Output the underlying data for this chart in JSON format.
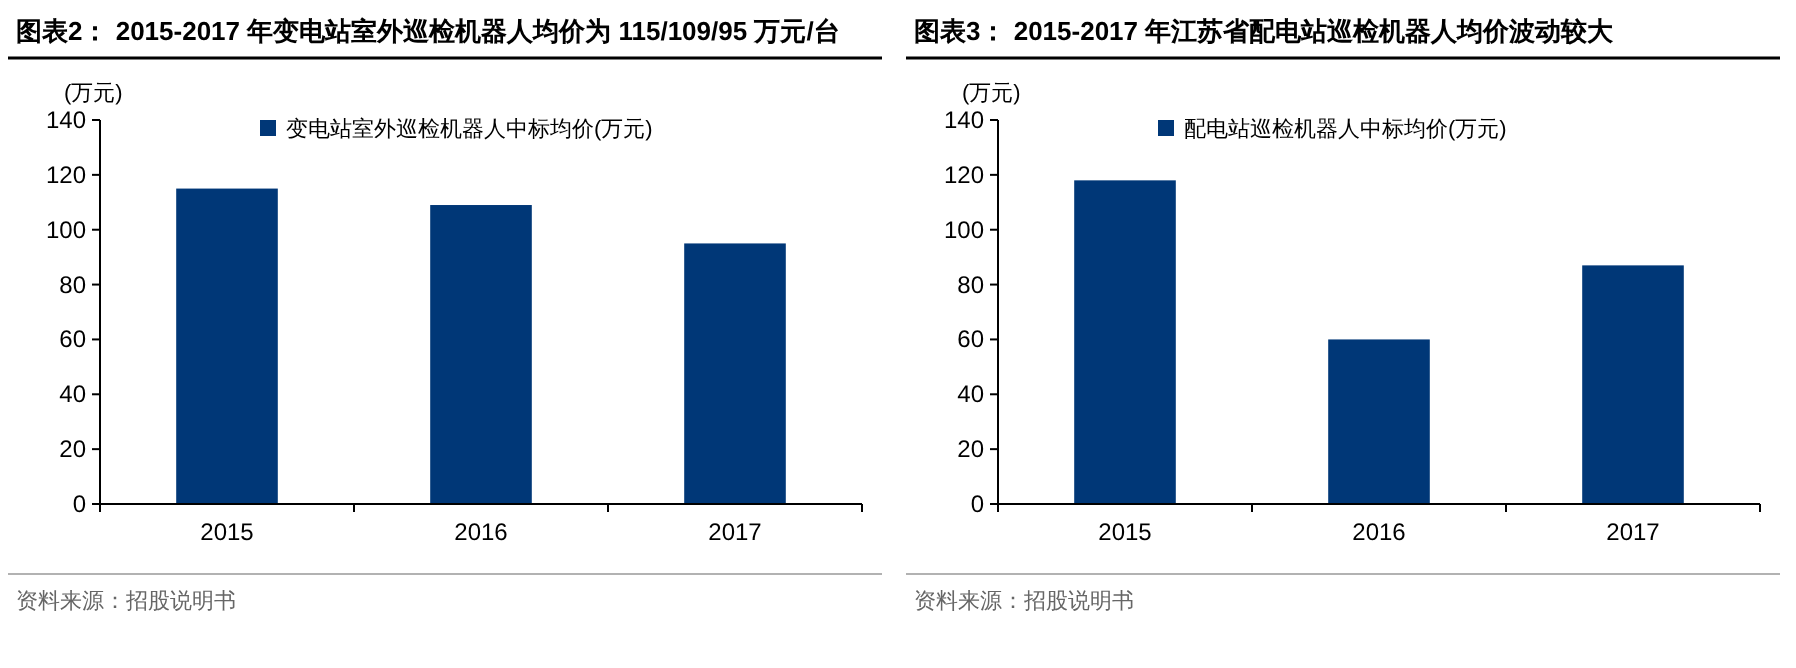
{
  "chart_data": [
    {
      "type": "bar",
      "title": "图表2： 2015-2017 年变电站室外巡检机器人均价为 115/109/95 万元/台",
      "ylabel": "(万元)",
      "categories": [
        "2015",
        "2016",
        "2017"
      ],
      "series": [
        {
          "name": "变电站室外巡检机器人中标均价(万元)",
          "color": "#003777",
          "values": [
            115,
            109,
            95
          ]
        }
      ],
      "ylim": [
        0,
        140
      ],
      "yticks": [
        0,
        20,
        40,
        60,
        80,
        100,
        120,
        140
      ],
      "legend": "top",
      "annotations": [
        "资料来源：招股说明书"
      ]
    },
    {
      "type": "bar",
      "title": "图表3： 2015-2017 年江苏省配电站巡检机器人均价波动较大",
      "ylabel": "(万元)",
      "categories": [
        "2015",
        "2016",
        "2017"
      ],
      "series": [
        {
          "name": "配电站巡检机器人中标均价(万元)",
          "color": "#003777",
          "values": [
            118,
            60,
            87
          ]
        }
      ],
      "ylim": [
        0,
        140
      ],
      "yticks": [
        0,
        20,
        40,
        60,
        80,
        100,
        120,
        140
      ],
      "legend": "top",
      "annotations": [
        "资料来源：招股说明书"
      ]
    }
  ]
}
